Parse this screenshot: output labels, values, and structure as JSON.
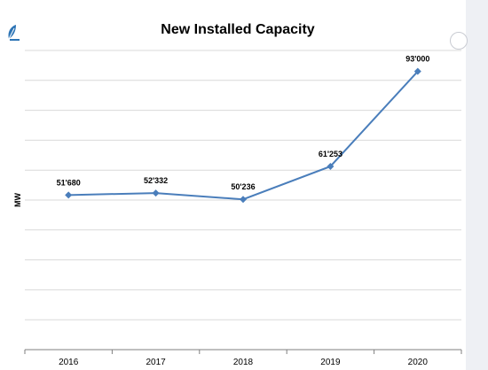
{
  "colors": {
    "line": "#4a7ebb",
    "grid": "#d9d9d9",
    "axis": "#7f7f7f",
    "text": "#000000",
    "logo": "#2e75b6"
  },
  "icons": {
    "logo": "leaf-logo-icon",
    "corner": "circle-icon"
  },
  "chart_data": {
    "type": "line",
    "title": "New Installed Capacity",
    "xlabel": "",
    "ylabel": "MW",
    "categories": [
      "2016",
      "2017",
      "2018",
      "2019",
      "2020"
    ],
    "series": [
      {
        "values": [
          51680,
          52332,
          50236,
          61253,
          93000
        ],
        "labels": [
          "51'680",
          "52'332",
          "50'236",
          "61'253",
          "93'000"
        ]
      }
    ],
    "ylim": [
      0,
      100000
    ],
    "y_ticks": [
      0,
      10000,
      20000,
      30000,
      40000,
      50000,
      60000,
      70000,
      80000,
      90000,
      100000
    ],
    "y_tick_labels_shown": false,
    "grid": true,
    "legend": "none"
  }
}
